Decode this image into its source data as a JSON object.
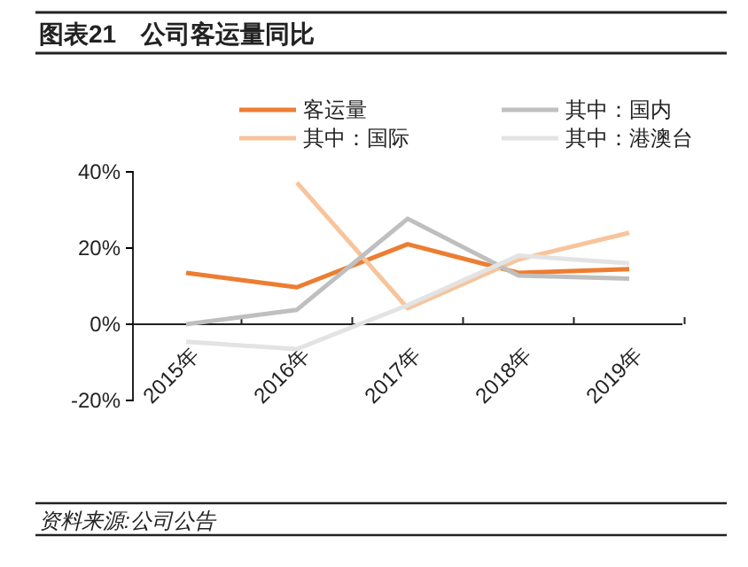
{
  "chart_data": {
    "type": "line",
    "title": "图表21　公司客运量同比",
    "categories": [
      "2015年",
      "2016年",
      "2017年",
      "2018年",
      "2019年"
    ],
    "series": [
      {
        "name": "客运量",
        "color": "#ed7d31",
        "values": [
          13.5,
          9.7,
          21,
          13.5,
          14.5
        ]
      },
      {
        "name": "其中：国际",
        "color": "#f8c49c",
        "values": [
          null,
          37.2,
          4.2,
          17,
          24
        ]
      },
      {
        "name": "其中：国内",
        "color": "#bfbfbf",
        "values": [
          0,
          3.8,
          27.7,
          12.8,
          12
        ]
      },
      {
        "name": "其中：港澳台",
        "color": "#e3e3e3",
        "values": [
          -4.6,
          -6.5,
          5,
          18,
          16
        ]
      }
    ],
    "ylim": [
      -20,
      40
    ],
    "yticks": [
      {
        "value": -20,
        "label": "-20%"
      },
      {
        "value": 0,
        "label": "0%"
      },
      {
        "value": 20,
        "label": "20%"
      },
      {
        "value": 40,
        "label": "40%"
      }
    ],
    "legend": "top",
    "grid": false,
    "annotations": [
      "资料来源:公司公告"
    ]
  }
}
